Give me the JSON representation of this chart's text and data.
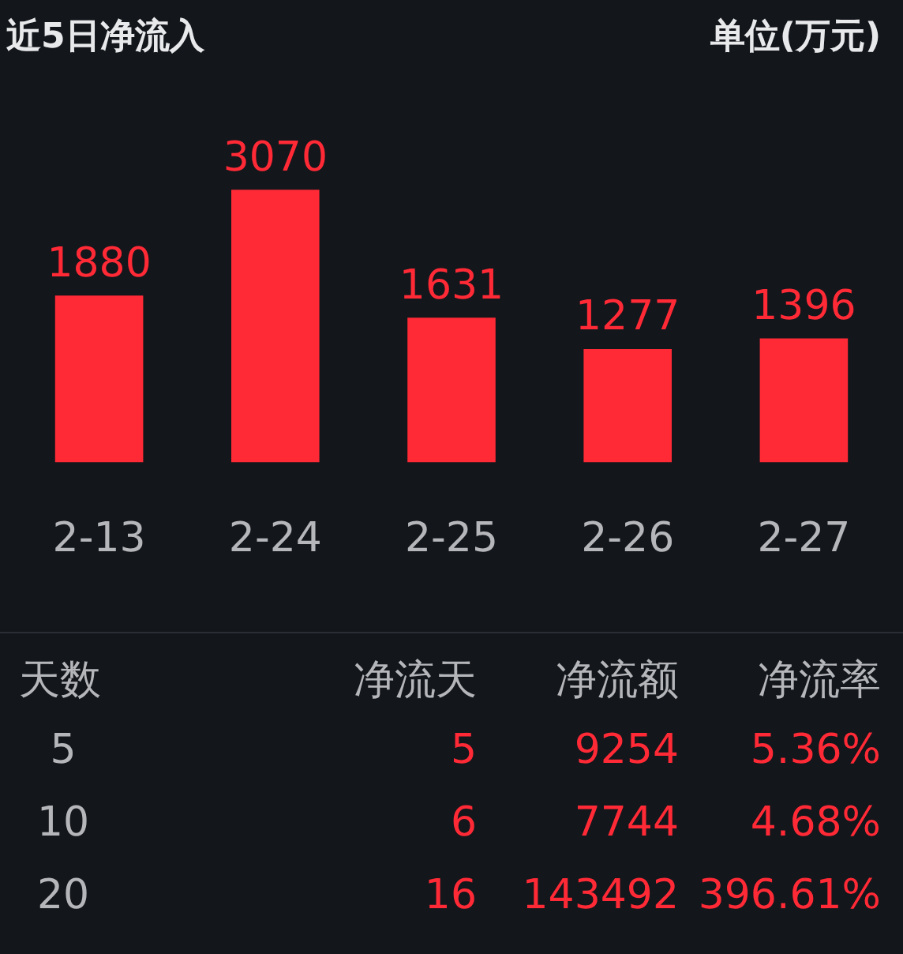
{
  "chart_data": [
    {
      "type": "bar",
      "title": "近5日净流入",
      "subtitle": "单位(万元)",
      "categories": [
        "2-13",
        "2-24",
        "2-25",
        "2-26",
        "2-27"
      ],
      "values": [
        1880,
        3070,
        1631,
        1277,
        1396
      ],
      "color": "#ff2a36",
      "data_labels": true,
      "legend": false
    },
    {
      "type": "other",
      "annotations": [
        "天数",
        "净流天",
        "净流额",
        "净流率",
        "5",
        "5",
        "9254",
        "5.36%",
        "10",
        "6",
        "7744",
        "4.68%",
        "20",
        "16",
        "143492",
        "396.61%"
      ]
    }
  ]
}
